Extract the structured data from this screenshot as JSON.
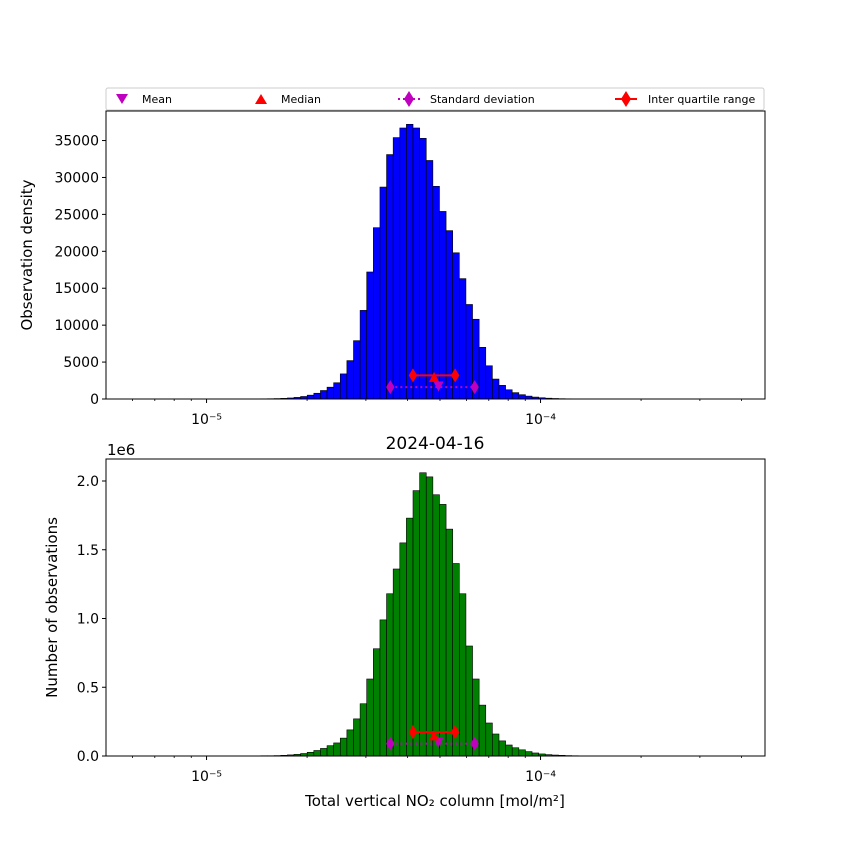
{
  "legend": {
    "placement": "top, above upper plot",
    "items": [
      {
        "label": "Mean",
        "marker": "triangle-down",
        "color": "#bf00bf"
      },
      {
        "label": "Median",
        "marker": "triangle-up",
        "color": "#ff0000"
      },
      {
        "label": "Standard deviation",
        "marker": "diamond-dotted-line",
        "color": "#bf00bf"
      },
      {
        "label": "Inter quartile range",
        "marker": "diamond-solid-line",
        "color": "#ff0000"
      }
    ]
  },
  "chart_data": [
    {
      "type": "bar",
      "title": "",
      "xlabel": "",
      "ylabel": "Observation density",
      "xscale": "log",
      "xlim": [
        5e-06,
        0.00047
      ],
      "ylim": [
        0,
        39000
      ],
      "yticks": [
        0,
        5000,
        10000,
        15000,
        20000,
        25000,
        30000,
        35000
      ],
      "ytick_labels": [
        "0",
        "5000",
        "10000",
        "15000",
        "20000",
        "25000",
        "30000",
        "35000"
      ],
      "xticks": [
        1e-05,
        0.0001
      ],
      "xtick_labels": [
        "10⁻⁵",
        "10⁻⁴"
      ],
      "bar_color": "#0000ff",
      "bins": {
        "start": 1.39e-05,
        "step_log10": 0.0198,
        "count": 55
      },
      "values": [
        20,
        30,
        40,
        60,
        90,
        140,
        220,
        340,
        520,
        780,
        1150,
        1600,
        2200,
        3400,
        5200,
        7900,
        12000,
        17200,
        23200,
        28700,
        33100,
        35400,
        36700,
        37200,
        36700,
        35300,
        32300,
        28800,
        25400,
        22800,
        19800,
        16300,
        12800,
        10800,
        7000,
        4500,
        2700,
        1850,
        1250,
        860,
        580,
        390,
        260,
        170,
        110,
        70,
        45,
        30,
        20,
        12,
        8,
        5,
        3,
        2,
        1
      ],
      "stats": {
        "mean": {
          "x": 4.95e-05,
          "y": 1700
        },
        "median": {
          "x": 4.8e-05,
          "y": 3000
        },
        "std": {
          "x": [
            3.55e-05,
            6.35e-05
          ],
          "y": 1600
        },
        "iqr": {
          "x": [
            4.15e-05,
            5.55e-05
          ],
          "y": 3200
        }
      }
    },
    {
      "type": "bar",
      "title": "2024-04-16",
      "xlabel": "Total vertical NO₂ column [mol/m²]",
      "ylabel": "Number of observations",
      "offset_text": "1e6",
      "xscale": "log",
      "xlim": [
        5e-06,
        0.00047
      ],
      "ylim": [
        0,
        2.16
      ],
      "yticks": [
        0,
        0.5,
        1.0,
        1.5,
        2.0
      ],
      "ytick_labels": [
        "0.0",
        "0.5",
        "1.0",
        "1.5",
        "2.0"
      ],
      "xticks": [
        1e-05,
        0.0001
      ],
      "xtick_labels": [
        "10⁻⁵",
        "10⁻⁴"
      ],
      "bar_color": "#008000",
      "bins": {
        "start": 1.39e-05,
        "step_log10": 0.0198,
        "count": 55
      },
      "values": [
        0.001,
        0.002,
        0.002,
        0.003,
        0.005,
        0.008,
        0.012,
        0.018,
        0.027,
        0.04,
        0.055,
        0.075,
        0.095,
        0.13,
        0.19,
        0.27,
        0.38,
        0.56,
        0.78,
        0.99,
        1.18,
        1.36,
        1.55,
        1.73,
        1.93,
        2.06,
        2.03,
        1.9,
        1.83,
        1.65,
        1.4,
        1.18,
        0.8,
        0.56,
        0.37,
        0.24,
        0.16,
        0.11,
        0.08,
        0.06,
        0.045,
        0.032,
        0.022,
        0.015,
        0.01,
        0.007,
        0.005,
        0.003,
        0.002,
        0.001,
        0.001,
        0.001,
        0.0,
        0.0,
        0.0
      ],
      "stats": {
        "mean": {
          "x": 4.95e-05,
          "y": 0.1
        },
        "median": {
          "x": 4.8e-05,
          "y": 0.15
        },
        "std": {
          "x": [
            3.55e-05,
            6.35e-05
          ],
          "y": 0.09
        },
        "iqr": {
          "x": [
            4.15e-05,
            5.55e-05
          ],
          "y": 0.175
        }
      }
    }
  ]
}
